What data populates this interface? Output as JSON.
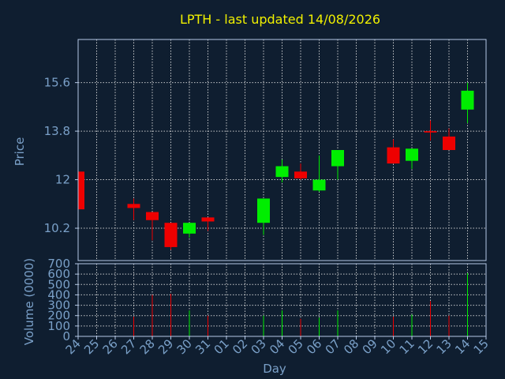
{
  "chart_data": {
    "type": "candlestick",
    "title": "LPTH - last updated 14/08/2026",
    "xlabel": "Day",
    "ylabel_price": "Price",
    "ylabel_volume": "Volume (0000)",
    "x_ticks": [
      "24",
      "25",
      "26",
      "27",
      "28",
      "29",
      "30",
      "31",
      "01",
      "02",
      "03",
      "04",
      "05",
      "06",
      "07",
      "08",
      "09",
      "10",
      "11",
      "12",
      "13",
      "14",
      "15"
    ],
    "price_ticks": [
      "10.2",
      "12",
      "13.8",
      "15.6"
    ],
    "price_ylim": [
      9.0,
      17.2
    ],
    "volume_ticks": [
      "0",
      "100",
      "200",
      "300",
      "400",
      "500",
      "600",
      "700"
    ],
    "volume_ylim": [
      0,
      700
    ],
    "grid": true,
    "colors": {
      "background": "#0f1e30",
      "axis": "#b4c8e6",
      "grid": "#e6e6e6",
      "title": "#f0f000",
      "label": "#7aa0c8",
      "up": "#00ee00",
      "down": "#ee0000"
    },
    "candles": [
      {
        "x": 0,
        "open": 12.3,
        "close": 10.9,
        "high": 12.3,
        "low": 10.9,
        "volume": 0
      },
      {
        "x": 3,
        "open": 11.1,
        "close": 10.95,
        "high": 11.3,
        "low": 10.5,
        "volume": 190
      },
      {
        "x": 4,
        "open": 10.8,
        "close": 10.5,
        "high": 10.8,
        "low": 9.75,
        "volume": 400
      },
      {
        "x": 5,
        "open": 10.4,
        "close": 9.5,
        "high": 10.4,
        "low": 9.4,
        "volume": 410
      },
      {
        "x": 6,
        "open": 10.0,
        "close": 10.4,
        "high": 10.4,
        "low": 9.85,
        "volume": 250
      },
      {
        "x": 7,
        "open": 10.6,
        "close": 10.45,
        "high": 10.6,
        "low": 10.1,
        "volume": 200
      },
      {
        "x": 10,
        "open": 10.4,
        "close": 11.3,
        "high": 11.3,
        "low": 9.95,
        "volume": 200
      },
      {
        "x": 11,
        "open": 12.1,
        "close": 12.5,
        "high": 12.75,
        "low": 11.9,
        "volume": 250
      },
      {
        "x": 12,
        "open": 12.3,
        "close": 12.05,
        "high": 12.6,
        "low": 12.0,
        "volume": 170
      },
      {
        "x": 13,
        "open": 11.6,
        "close": 12.0,
        "high": 12.9,
        "low": 11.55,
        "volume": 180
      },
      {
        "x": 14,
        "open": 12.5,
        "close": 13.1,
        "high": 13.1,
        "low": 12.0,
        "volume": 250
      },
      {
        "x": 17,
        "open": 13.2,
        "close": 12.6,
        "high": 13.5,
        "low": 12.6,
        "volume": 190
      },
      {
        "x": 18,
        "open": 12.7,
        "close": 13.15,
        "high": 13.15,
        "low": 12.4,
        "volume": 210
      },
      {
        "x": 19,
        "open": 13.8,
        "close": 13.75,
        "high": 14.2,
        "low": 13.45,
        "volume": 340
      },
      {
        "x": 20,
        "open": 13.6,
        "close": 13.1,
        "high": 13.9,
        "low": 13.1,
        "volume": 200
      },
      {
        "x": 21,
        "open": 14.6,
        "close": 15.3,
        "high": 15.6,
        "low": 14.1,
        "volume": 610
      }
    ]
  }
}
